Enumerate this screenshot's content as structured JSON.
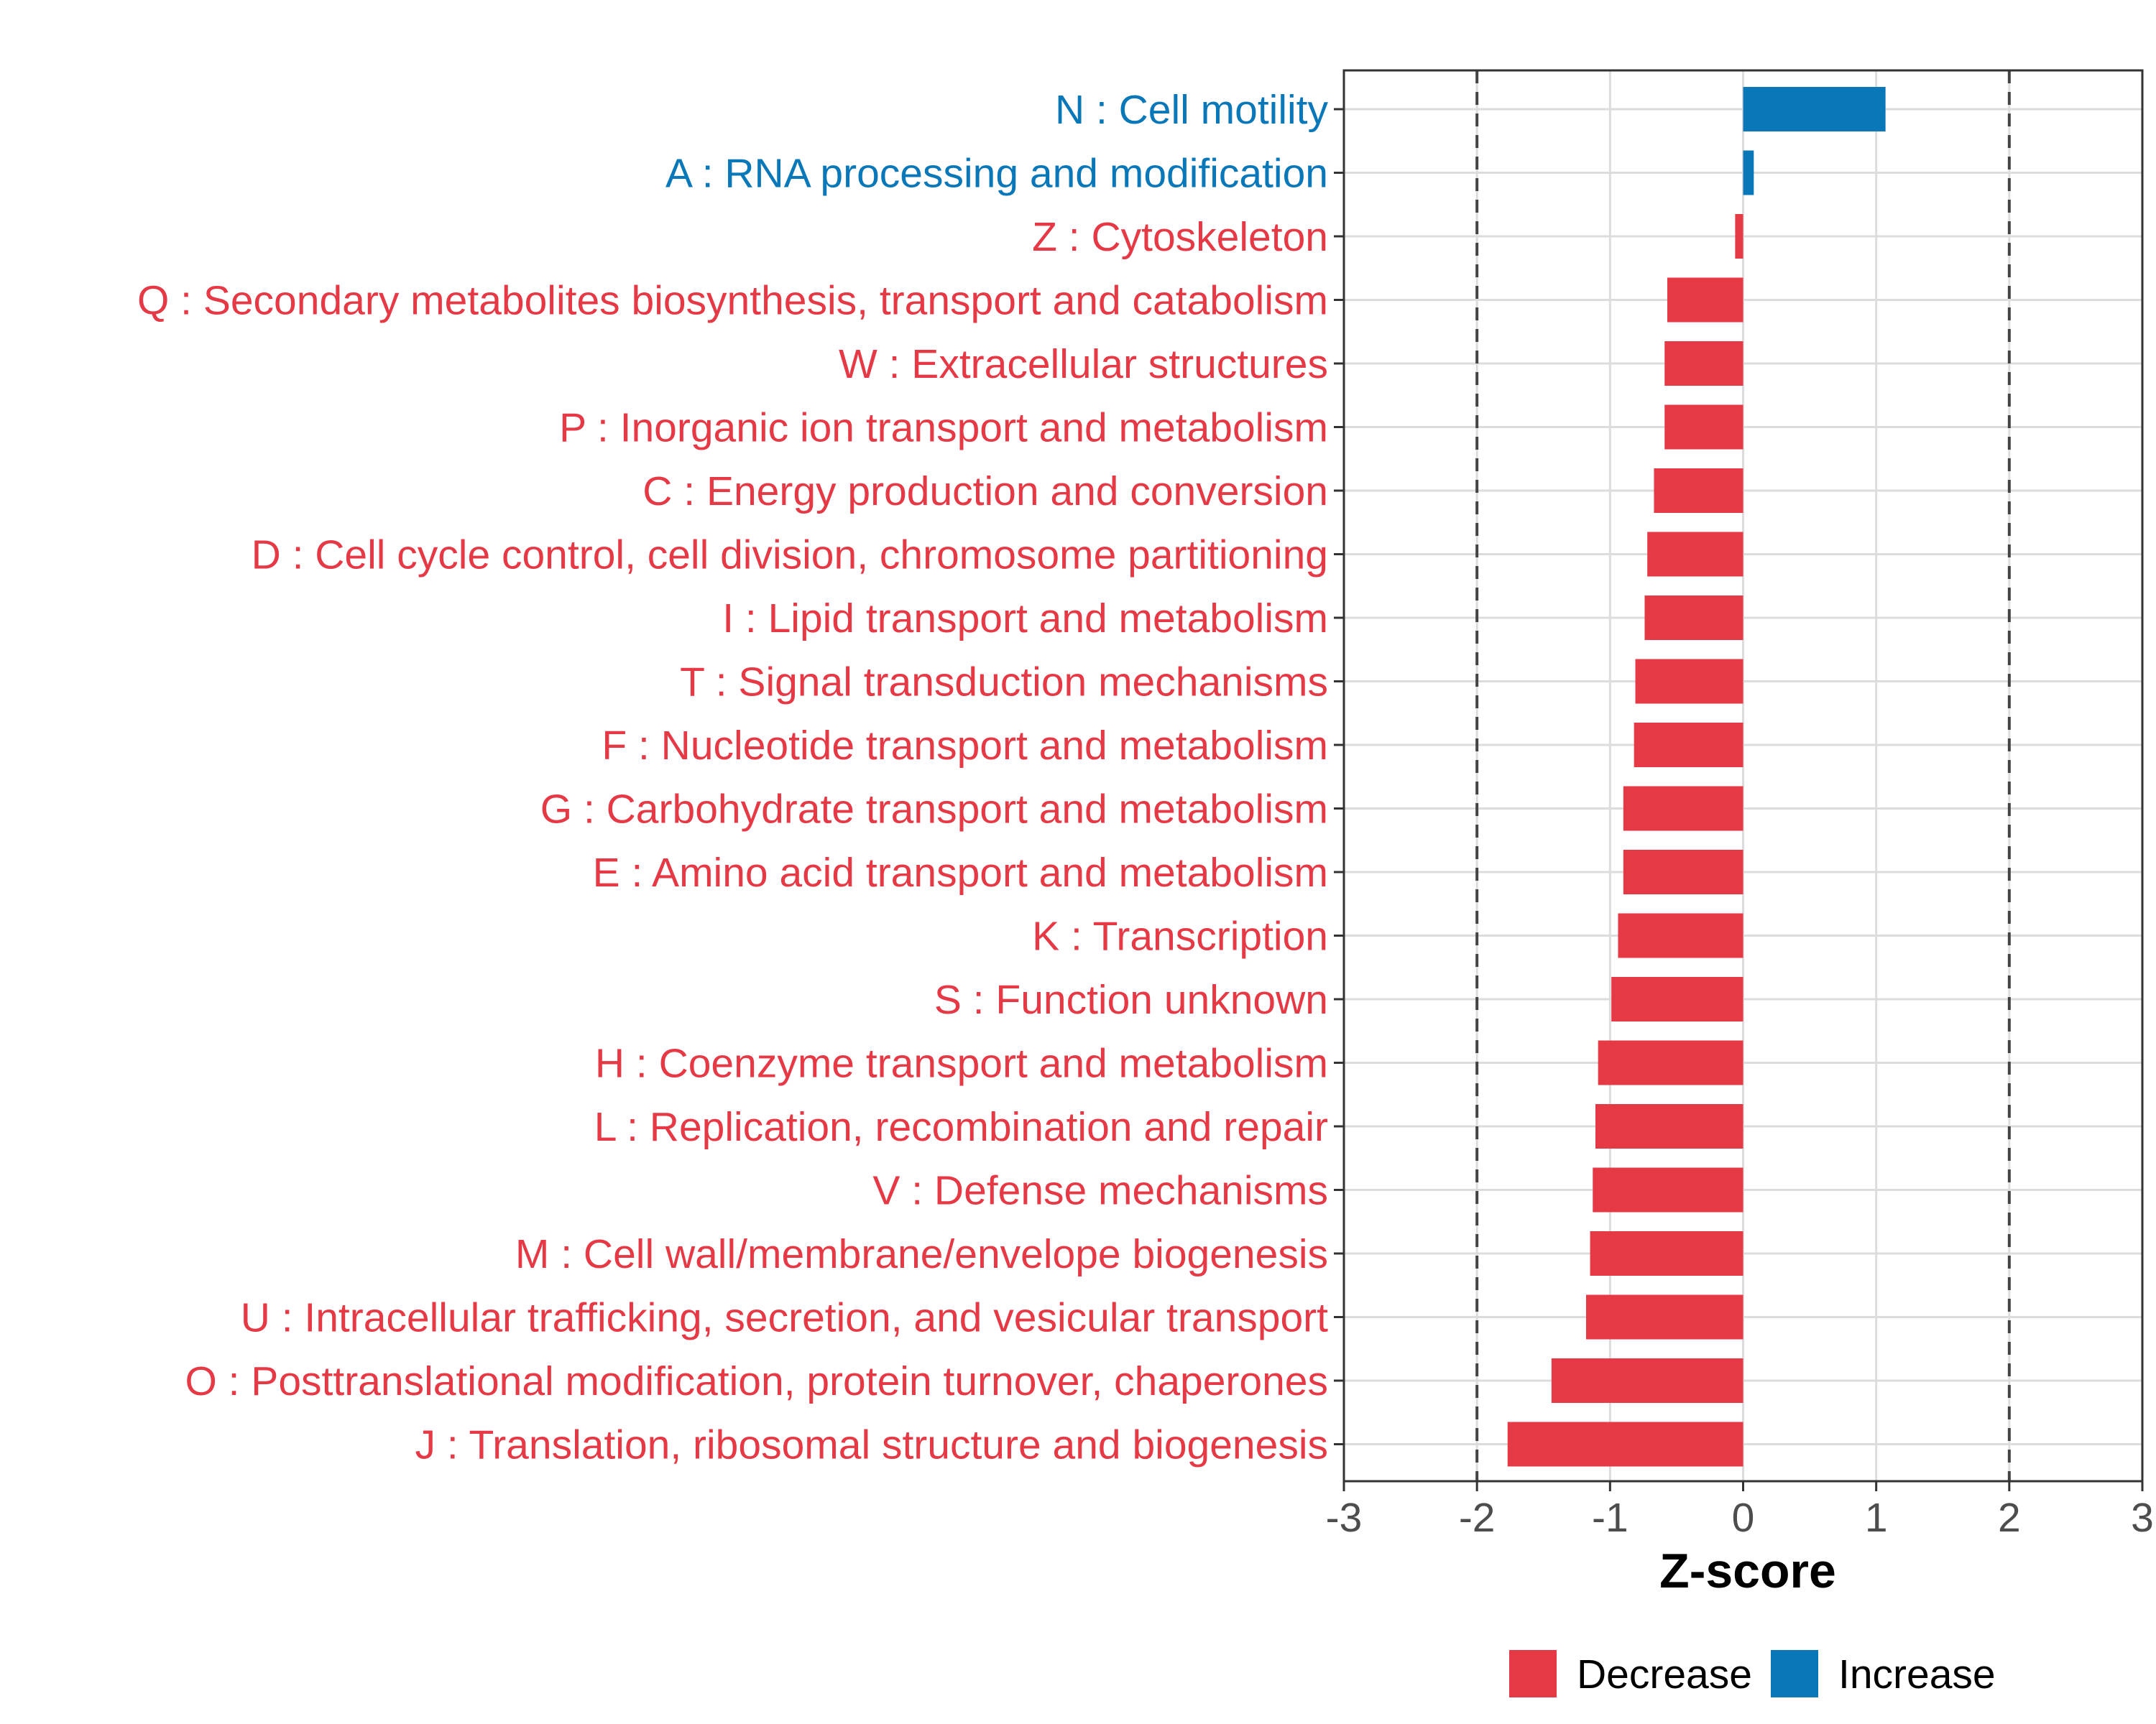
{
  "chart_data": {
    "type": "bar",
    "orientation": "horizontal",
    "title": "",
    "xlabel": "Z-score",
    "ylabel": "",
    "xlim": [
      -3,
      3
    ],
    "xticks": [
      -3,
      -2,
      -1,
      0,
      1,
      2,
      3
    ],
    "xtick_labels": [
      "-3",
      "-2",
      "-1",
      "0",
      "1",
      "2",
      "3"
    ],
    "threshold_lines": [
      -2,
      2
    ],
    "grid": true,
    "legend_position": "bottom",
    "legend": [
      {
        "name": "Decrease",
        "color": "#e63946"
      },
      {
        "name": "Increase",
        "color": "#0a78b8"
      }
    ],
    "categories": [
      "N : Cell motility",
      "A : RNA processing and modification",
      "Z : Cytoskeleton",
      "Q : Secondary metabolites biosynthesis, transport and catabolism",
      "W : Extracellular structures",
      "P : Inorganic ion transport and metabolism",
      "C : Energy production and conversion",
      "D : Cell cycle control, cell division, chromosome partitioning",
      "I : Lipid transport and metabolism",
      "T : Signal transduction mechanisms",
      "F : Nucleotide transport and metabolism",
      "G : Carbohydrate transport and metabolism",
      "E : Amino acid transport and metabolism",
      "K : Transcription",
      "S : Function unknown",
      "H : Coenzyme transport and metabolism",
      "L : Replication, recombination and repair",
      "V : Defense mechanisms",
      "M : Cell wall/membrane/envelope biogenesis",
      "U : Intracellular trafficking, secretion, and vesicular transport",
      "O : Posttranslational modification, protein turnover, chaperones",
      "J : Translation, ribosomal structure and biogenesis"
    ],
    "values": [
      1.07,
      0.08,
      -0.06,
      -0.57,
      -0.59,
      -0.59,
      -0.67,
      -0.72,
      -0.74,
      -0.81,
      -0.82,
      -0.9,
      -0.9,
      -0.94,
      -0.99,
      -1.09,
      -1.11,
      -1.13,
      -1.15,
      -1.18,
      -1.44,
      -1.77
    ],
    "groups": [
      "Increase",
      "Increase",
      "Decrease",
      "Decrease",
      "Decrease",
      "Decrease",
      "Decrease",
      "Decrease",
      "Decrease",
      "Decrease",
      "Decrease",
      "Decrease",
      "Decrease",
      "Decrease",
      "Decrease",
      "Decrease",
      "Decrease",
      "Decrease",
      "Decrease",
      "Decrease",
      "Decrease",
      "Decrease"
    ]
  }
}
